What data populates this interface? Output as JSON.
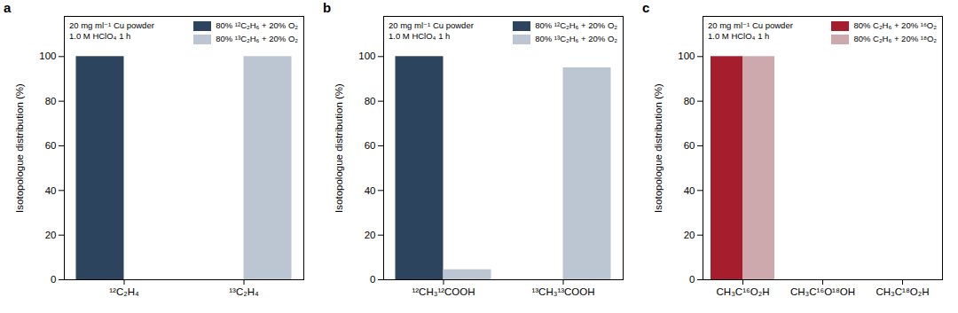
{
  "chart_data": [
    {
      "type": "bar",
      "title": "a",
      "annotations": [
        "20 mg ml⁻¹ Cu powder",
        "1.0 M HClO₄ 1 h"
      ],
      "y_label": "Isotopologue distribution (%)",
      "categories": [
        "¹²C₂H₄",
        "¹³C₂H₄"
      ],
      "series": [
        {
          "name": "80% ¹²C₂H₆ + 20% O₂",
          "color": "#2c445e",
          "values": [
            100,
            0
          ]
        },
        {
          "name": "80% ¹³C₂H₆ + 20% O₂",
          "color": "#bcc6d2",
          "values": [
            0,
            100
          ]
        }
      ],
      "ylim": [
        0,
        118
      ],
      "yticks": [
        0,
        20,
        40,
        60,
        80,
        100
      ],
      "legend": "upper right"
    },
    {
      "type": "bar",
      "title": "b",
      "annotations": [
        "20 mg ml⁻¹ Cu powder",
        "1.0 M HClO₄ 1 h"
      ],
      "y_label": "Isotopologue distribution (%)",
      "categories": [
        "¹²CH₃¹²COOH",
        "¹³CH₃¹³COOH"
      ],
      "series": [
        {
          "name": "80% ¹²C₂H₆ + 20% O₂",
          "color": "#2c445e",
          "values": [
            100,
            0
          ]
        },
        {
          "name": "80% ¹³C₂H₆ + 20% O₂",
          "color": "#bcc6d2",
          "values": [
            4.5,
            95
          ]
        }
      ],
      "ylim": [
        0,
        118
      ],
      "yticks": [
        0,
        20,
        40,
        60,
        80,
        100
      ],
      "legend": "upper right"
    },
    {
      "type": "bar",
      "title": "c",
      "annotations": [
        "20 mg ml⁻¹ Cu powder",
        "1.0 M HClO₄ 1 h"
      ],
      "y_label": "Isotopologue distribution (%)",
      "categories": [
        "CH₃C¹⁶O₂H",
        "CH₃C¹⁶O¹⁸OH",
        "CH₃C¹⁸O₂H"
      ],
      "series": [
        {
          "name": "80% C₂H₆ + 20% ¹⁶O₂",
          "color": "#a61e2d",
          "values": [
            100,
            0,
            0
          ]
        },
        {
          "name": "80% C₂H₆ + 20% ¹⁸O₂",
          "color": "#cda9ad",
          "values": [
            100,
            0,
            0
          ]
        }
      ],
      "ylim": [
        0,
        118
      ],
      "yticks": [
        0,
        20,
        40,
        60,
        80,
        100
      ],
      "legend": "upper right"
    }
  ]
}
